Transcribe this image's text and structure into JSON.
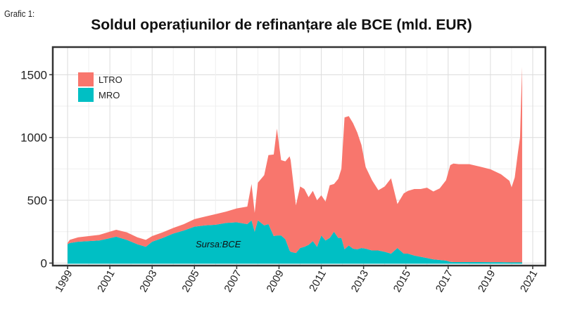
{
  "figure_label": "Grafic 1:",
  "chart_data": {
    "type": "area",
    "title": "Soldul operațiunilor de refinanțare ale BCE (mld. EUR)",
    "xlabel": "",
    "ylabel": "",
    "xlim": [
      1998.3,
      2021.6
    ],
    "ylim": [
      -20,
      1720
    ],
    "y_ticks": [
      0,
      500,
      1000,
      1500
    ],
    "x_ticks": [
      1999,
      2001,
      2003,
      2005,
      2007,
      2009,
      2011,
      2013,
      2015,
      2017,
      2019,
      2021
    ],
    "grid": true,
    "stacked": true,
    "legend_position": "top-left",
    "annotation": "Sursa:BCE",
    "colors": {
      "LTRO": "#f8766d",
      "MRO": "#00bfc4"
    },
    "x": [
      1999.0,
      1999.1,
      1999.5,
      2000.0,
      2000.5,
      2000.9,
      2001.3,
      2001.8,
      2002.3,
      2002.7,
      2003.0,
      2003.5,
      2004.0,
      2004.5,
      2005.0,
      2005.5,
      2006.0,
      2006.5,
      2007.0,
      2007.5,
      2007.7,
      2007.85,
      2008.0,
      2008.3,
      2008.5,
      2008.75,
      2008.9,
      2009.1,
      2009.3,
      2009.5,
      2009.55,
      2009.8,
      2010.0,
      2010.2,
      2010.4,
      2010.6,
      2010.8,
      2011.0,
      2011.2,
      2011.4,
      2011.6,
      2011.8,
      2011.95,
      2012.1,
      2012.3,
      2012.5,
      2012.7,
      2012.9,
      2013.1,
      2013.4,
      2013.7,
      2014.0,
      2014.3,
      2014.6,
      2014.9,
      2015.1,
      2015.4,
      2015.7,
      2016.0,
      2016.3,
      2016.6,
      2016.9,
      2017.1,
      2017.25,
      2017.5,
      2018.0,
      2018.5,
      2019.0,
      2019.5,
      2019.9,
      2020.0,
      2020.15,
      2020.3,
      2020.4,
      2020.45,
      2020.5
    ],
    "series": [
      {
        "name": "MRO",
        "values": [
          150,
          160,
          170,
          175,
          180,
          195,
          210,
          185,
          150,
          130,
          170,
          200,
          235,
          260,
          290,
          300,
          305,
          320,
          325,
          310,
          340,
          250,
          340,
          300,
          310,
          215,
          220,
          220,
          190,
          100,
          90,
          80,
          120,
          130,
          145,
          175,
          130,
          220,
          180,
          200,
          250,
          200,
          200,
          110,
          140,
          115,
          110,
          120,
          115,
          100,
          100,
          90,
          75,
          120,
          75,
          75,
          60,
          50,
          40,
          30,
          25,
          20,
          10,
          8,
          8,
          8,
          8,
          7,
          7,
          5,
          3,
          2,
          1,
          1,
          1,
          1
        ]
      },
      {
        "name": "LTRO",
        "values": [
          10,
          25,
          35,
          40,
          45,
          50,
          55,
          60,
          55,
          55,
          45,
          45,
          45,
          50,
          60,
          70,
          85,
          90,
          110,
          140,
          290,
          150,
          300,
          400,
          550,
          650,
          850,
          600,
          620,
          750,
          730,
          380,
          490,
          460,
          380,
          400,
          370,
          320,
          310,
          420,
          380,
          470,
          550,
          1050,
          1030,
          1000,
          930,
          820,
          650,
          560,
          480,
          520,
          600,
          350,
          480,
          500,
          530,
          540,
          560,
          540,
          570,
          640,
          770,
          785,
          780,
          780,
          760,
          740,
          700,
          650,
          600,
          680,
          880,
          1000,
          1300,
          1560
        ]
      }
    ]
  }
}
